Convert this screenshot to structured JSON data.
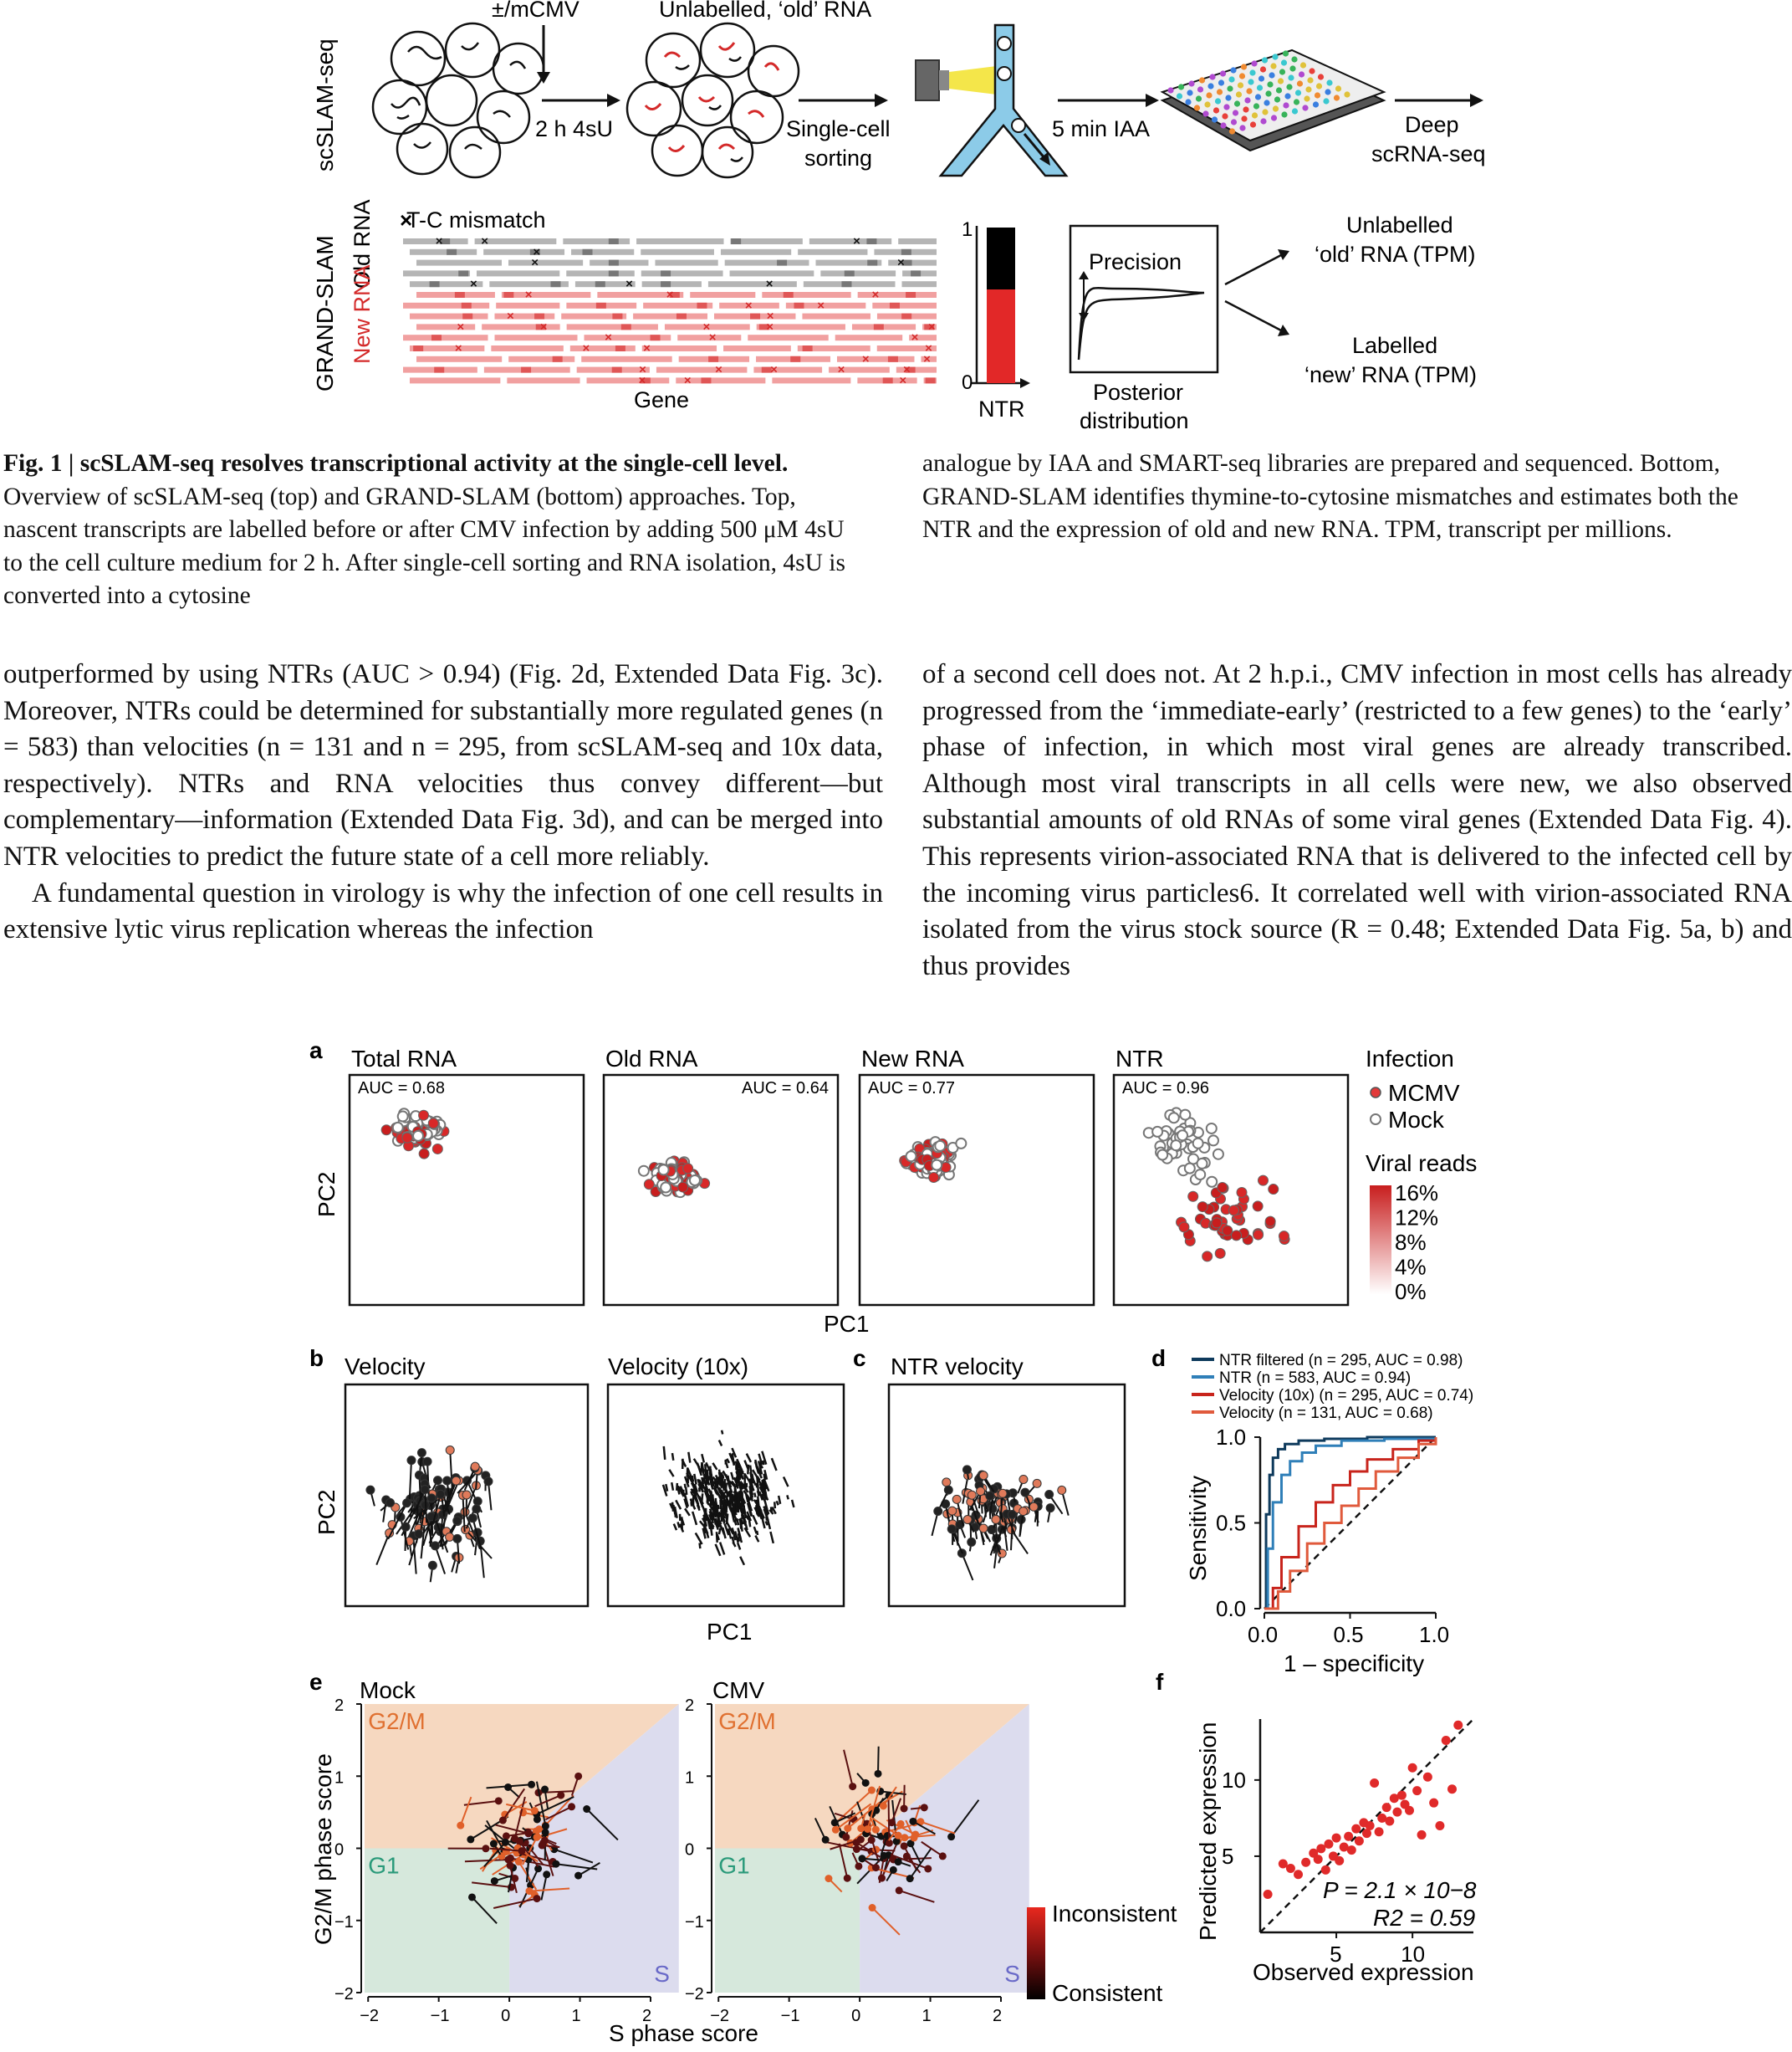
{
  "fig1": {
    "row_label_top": "scSLAM-seq",
    "row_label_bottom": "GRAND-SLAM",
    "mcmv_label": "±/mCMV",
    "unlabelled_label": "Unlabelled, ‘old’ RNA",
    "step1": "2 h 4sU",
    "step2_a": "Single-cell",
    "step2_b": "sorting",
    "step3": "5 min IAA",
    "step4_a": "Deep",
    "step4_b": "scRNA-seq",
    "tc_mismatch": "T-C mismatch",
    "old_rna": "Old RNA",
    "new_rna": "New RNA",
    "gene": "Gene",
    "ntr": "NTR",
    "ntr_top": "1",
    "ntr_bottom": "0",
    "precision": "Precision",
    "posterior_a": "Posterior",
    "posterior_b": "distribution",
    "out1_a": "Unlabelled",
    "out1_b": "‘old’ RNA (TPM)",
    "out2_a": "Labelled",
    "out2_b": "‘new’ RNA (TPM)"
  },
  "caption": {
    "title": "Fig. 1 | scSLAM-seq resolves transcriptional activity at the single-cell level.",
    "left_body": "Overview of scSLAM-seq (top) and GRAND-SLAM (bottom) approaches. Top, nascent transcripts are labelled before or after CMV infection by adding 500 μM 4sU to the cell culture medium for 2 h. After single-cell sorting and RNA isolation, 4sU is converted into a cytosine",
    "right_body": "analogue by IAA and SMART-seq libraries are prepared and sequenced. Bottom, GRAND-SLAM identifies thymine-to-cytosine mismatches and estimates both the NTR and the expression of old and new RNA. TPM, transcript per millions."
  },
  "body": {
    "left": "outperformed by using NTRs (AUC > 0.94) (Fig. 2d, Extended Data Fig. 3c). Moreover, NTRs could be determined for substantially more regulated genes (n = 583) than velocities (n = 131 and n = 295, from scSLAM-seq and 10x data, respectively). NTRs and RNA velocities thus convey different—but complementary—information (Extended Data Fig. 3d), and can be merged into NTR velocities to predict the future state of a cell more reliably.",
    "left_p2": "A fundamental question in virology is why the infection of one cell results in extensive lytic virus replication whereas the infection",
    "right": "of a second cell does not. At 2 h.p.i., CMV infection in most cells has already progressed from the ‘immediate-early’ (restricted to a few genes) to the ‘early’ phase of infection, in which most viral genes are already transcribed. Although most viral transcripts in all cells were new, we also observed substantial amounts of old RNAs of some viral genes (Extended Data Fig. 4). This represents virion-associated RNA that is delivered to the infected cell by the incoming virus particles6. It correlated well with virion-associated RNA isolated from the virus stock source (R = 0.48; Extended Data Fig. 5a, b) and thus provides"
  },
  "fig2": {
    "a": {
      "letter": "a",
      "xlabel": "PC1",
      "ylabel": "PC2",
      "panels": [
        {
          "title": "Total RNA",
          "auc": "AUC = 0.68"
        },
        {
          "title": "Old RNA",
          "auc": "AUC = 0.64"
        },
        {
          "title": "New RNA",
          "auc": "AUC = 0.77"
        },
        {
          "title": "NTR",
          "auc": "AUC = 0.96"
        }
      ],
      "legend_title": "Infection",
      "legend_mcmv": "MCMV",
      "legend_mock": "Mock",
      "viral_title": "Viral reads",
      "viral_ticks": [
        "16%",
        "12%",
        "8%",
        "4%",
        "0%"
      ]
    },
    "b": {
      "letter": "b",
      "title1": "Velocity",
      "title2": "Velocity (10x)",
      "xlabel": "PC1",
      "ylabel": "PC2"
    },
    "c": {
      "letter": "c",
      "title": "NTR velocity"
    },
    "d": {
      "letter": "d",
      "legend": [
        "NTR filtered (n = 295, AUC = 0.98)",
        "NTR (n = 583, AUC = 0.94)",
        "Velocity (10x) (n = 295, AUC = 0.74)",
        "Velocity (n = 131, AUC = 0.68)"
      ],
      "legend_colors": [
        "#0e3a5c",
        "#2f7fb8",
        "#c8241c",
        "#e05a3c"
      ],
      "xlabel": "1 – specificity",
      "ylabel": "Sensitivity",
      "xticks": [
        "0.0",
        "0.5",
        "1.0"
      ],
      "yticks": [
        "1.0",
        "0.5",
        "0.0"
      ]
    },
    "e": {
      "letter": "e",
      "title1": "Mock",
      "title2": "CMV",
      "xlabel": "S phase score",
      "ylabel": "G2/M phase score",
      "xticks": [
        "−2",
        "−1",
        "0",
        "1",
        "2"
      ],
      "yticks": [
        "2",
        "1",
        "0",
        "−1",
        "−2"
      ],
      "region_g2m": "G2/M",
      "region_g1": "G1",
      "region_s": "S",
      "legend_top": "Inconsistent",
      "legend_bottom": "Consistent"
    },
    "f": {
      "letter": "f",
      "xlabel": "Observed expression",
      "ylabel": "Predicted expression",
      "xticks": [
        "5",
        "10"
      ],
      "yticks": [
        "10",
        "5"
      ],
      "p_value": "P = 2.1 × 10−8",
      "r2": "R2 = 0.59"
    }
  },
  "chart_data": [
    {
      "type": "line",
      "title": "",
      "xlabel": "1 – specificity",
      "ylabel": "Sensitivity",
      "xlim": [
        0,
        1
      ],
      "ylim": [
        0,
        1
      ],
      "series": [
        {
          "name": "NTR filtered (n = 295, AUC = 0.98)",
          "x": [
            0,
            0.01,
            0.03,
            0.05,
            0.08,
            0.12,
            0.2,
            0.35,
            0.6,
            1.0
          ],
          "y": [
            0,
            0.55,
            0.78,
            0.88,
            0.93,
            0.96,
            0.98,
            0.99,
            1.0,
            1.0
          ]
        },
        {
          "name": "NTR (n = 583, AUC = 0.94)",
          "x": [
            0,
            0.02,
            0.05,
            0.1,
            0.15,
            0.22,
            0.3,
            0.45,
            0.7,
            1.0
          ],
          "y": [
            0,
            0.35,
            0.62,
            0.78,
            0.86,
            0.91,
            0.95,
            0.98,
            0.99,
            1.0
          ]
        },
        {
          "name": "Velocity (10x) (n = 295, AUC = 0.74)",
          "x": [
            0,
            0.05,
            0.1,
            0.2,
            0.3,
            0.4,
            0.5,
            0.6,
            0.75,
            0.9,
            1.0
          ],
          "y": [
            0,
            0.12,
            0.3,
            0.48,
            0.62,
            0.72,
            0.8,
            0.87,
            0.93,
            0.98,
            1.0
          ]
        },
        {
          "name": "Velocity (n = 131, AUC = 0.68)",
          "x": [
            0,
            0.08,
            0.15,
            0.25,
            0.35,
            0.45,
            0.55,
            0.65,
            0.78,
            0.9,
            1.0
          ],
          "y": [
            0,
            0.1,
            0.22,
            0.38,
            0.5,
            0.6,
            0.7,
            0.8,
            0.88,
            0.96,
            1.0
          ]
        }
      ]
    },
    {
      "type": "scatter",
      "title": "",
      "xlabel": "Observed expression",
      "ylabel": "Predicted expression",
      "xlim": [
        0,
        14
      ],
      "ylim": [
        0,
        14
      ],
      "series": [
        {
          "x": [
            0.5,
            1.5,
            2.0,
            2.5,
            3.0,
            3.5,
            3.8,
            4.0,
            4.3,
            4.5,
            4.8,
            5.0,
            5.2,
            5.5,
            5.8,
            6.0,
            6.3,
            6.5,
            6.8,
            7.0,
            7.2,
            7.5,
            7.8,
            8.0,
            8.3,
            8.5,
            8.8,
            9.0,
            9.3,
            9.5,
            9.8,
            10.0,
            10.3,
            10.6,
            11.0,
            11.4,
            11.8,
            12.2,
            12.6,
            13.0
          ],
          "y": [
            2.5,
            4.5,
            4.2,
            3.8,
            4.6,
            5.2,
            4.8,
            5.5,
            4.1,
            5.8,
            5.0,
            6.2,
            4.7,
            5.6,
            6.3,
            5.4,
            6.8,
            6.0,
            7.2,
            6.5,
            7.0,
            9.8,
            6.6,
            7.5,
            8.2,
            7.3,
            8.8,
            7.9,
            9.0,
            8.4,
            8.0,
            10.8,
            9.3,
            6.4,
            10.2,
            8.5,
            7.0,
            12.6,
            9.4,
            13.6
          ]
        }
      ]
    }
  ]
}
